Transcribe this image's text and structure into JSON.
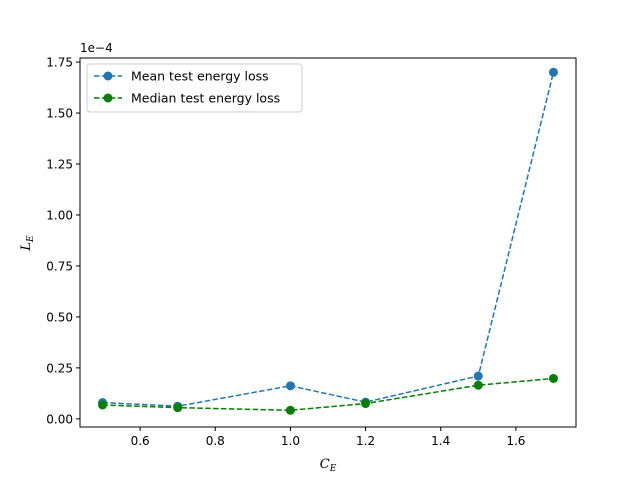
{
  "chart_data": {
    "type": "line",
    "xlabel": "C",
    "xlabel_sub": "E",
    "ylabel": "L",
    "ylabel_sub": "E",
    "y_offset_label": "1e−4",
    "x": [
      0.5,
      0.7,
      1.0,
      1.2,
      1.5,
      1.7
    ],
    "xlim": [
      0.44,
      1.76
    ],
    "ylim": [
      -0.04,
      1.77
    ],
    "x_ticks": [
      0.6,
      0.8,
      1.0,
      1.2,
      1.4,
      1.6
    ],
    "x_tick_labels": [
      "0.6",
      "0.8",
      "1.0",
      "1.2",
      "1.4",
      "1.6"
    ],
    "y_ticks": [
      0.0,
      0.25,
      0.5,
      0.75,
      1.0,
      1.25,
      1.5,
      1.75
    ],
    "y_tick_labels": [
      "0.00",
      "0.25",
      "0.50",
      "0.75",
      "1.00",
      "1.25",
      "1.50",
      "1.75"
    ],
    "grid": false,
    "legend_position": "top-left",
    "series": [
      {
        "name": "Mean test energy loss",
        "color": "#1f77b4",
        "line_style": "dashed",
        "marker": "circle",
        "values": [
          0.08,
          0.062,
          0.162,
          0.082,
          0.21,
          1.7
        ]
      },
      {
        "name": "Median test energy loss",
        "color": "#008000",
        "line_style": "dashed",
        "marker": "circle",
        "values": [
          0.068,
          0.055,
          0.042,
          0.075,
          0.165,
          0.198
        ]
      }
    ]
  }
}
